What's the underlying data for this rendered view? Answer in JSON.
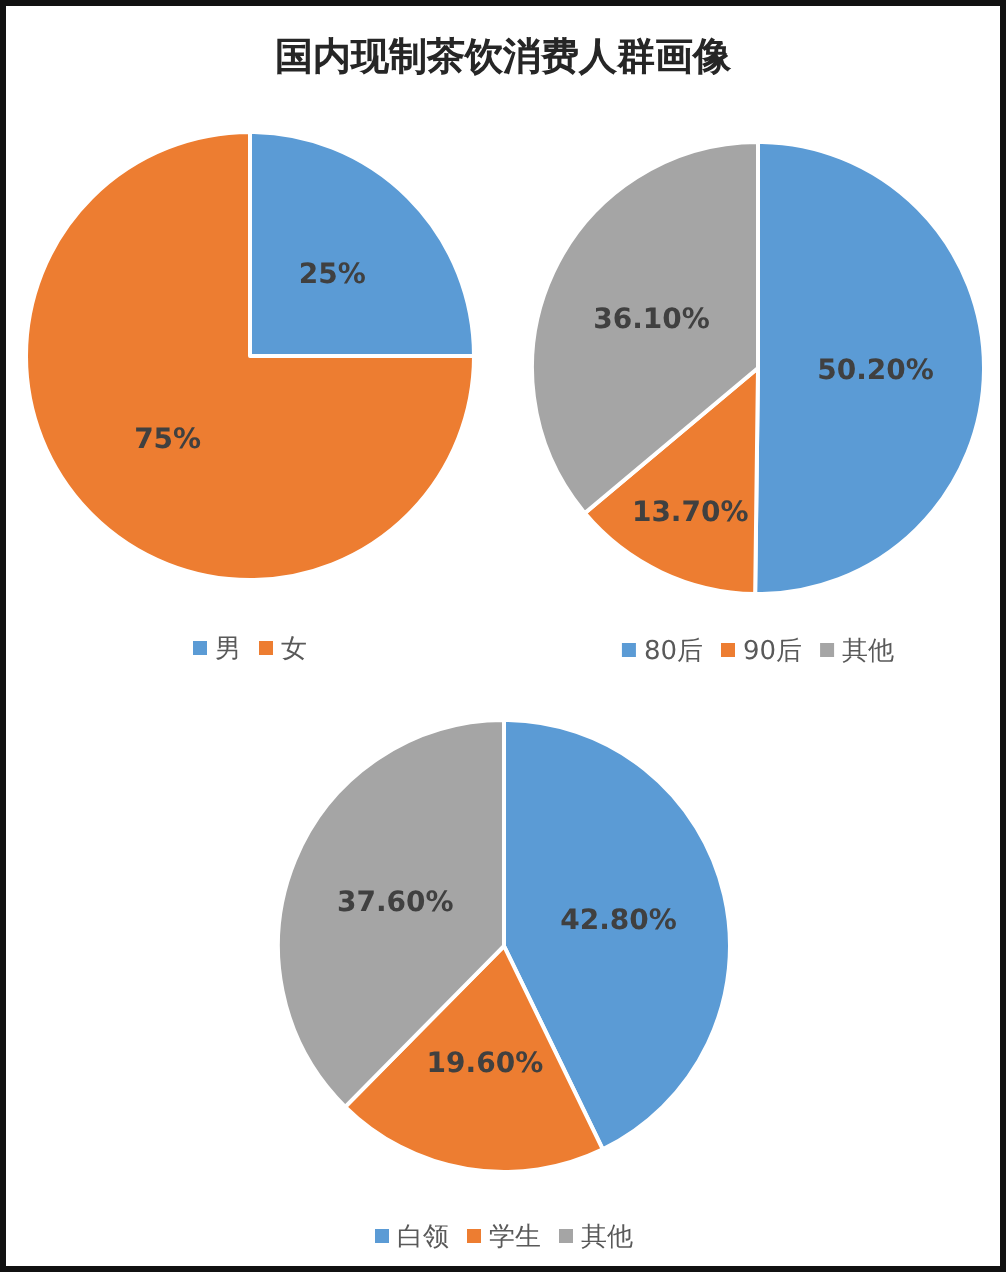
{
  "chart_data": [
    {
      "type": "pie",
      "title": "国内现制茶饮消费人群画像",
      "categories": [
        "男",
        "女"
      ],
      "values": [
        25,
        75
      ],
      "colors": [
        "#5b9bd5",
        "#ed7d31"
      ],
      "value_labels": [
        "25%",
        "75%"
      ],
      "legend": "bottom"
    },
    {
      "type": "pie",
      "categories": [
        "80后",
        "90后",
        "其他"
      ],
      "values": [
        50.2,
        13.7,
        36.1
      ],
      "colors": [
        "#5b9bd5",
        "#ed7d31",
        "#a5a5a5"
      ],
      "value_labels": [
        "50.20%",
        "13.70%",
        "36.10%"
      ],
      "legend": "bottom"
    },
    {
      "type": "pie",
      "categories": [
        "白领",
        "学生",
        "其他"
      ],
      "values": [
        42.8,
        19.6,
        37.6
      ],
      "colors": [
        "#5b9bd5",
        "#ed7d31",
        "#a5a5a5"
      ],
      "value_labels": [
        "42.80%",
        "19.60%",
        "37.60%"
      ],
      "legend": "bottom"
    }
  ]
}
